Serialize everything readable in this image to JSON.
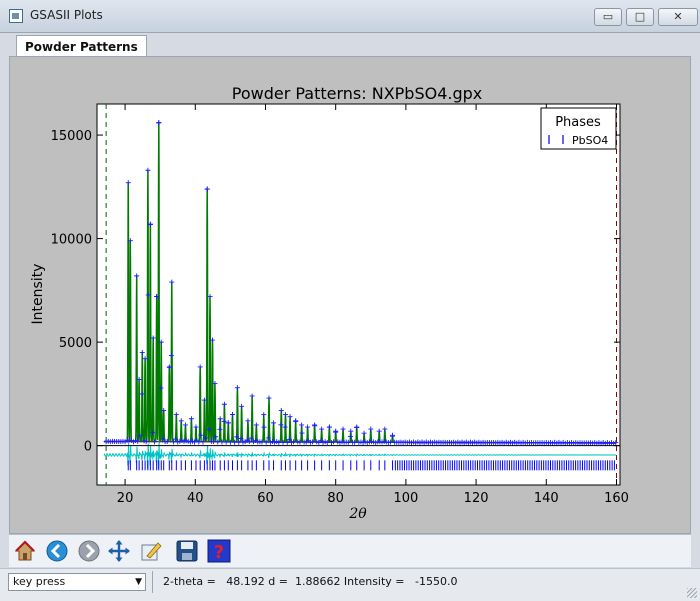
{
  "window": {
    "title": "GSASII Plots",
    "buttons": {
      "minimize": "▭",
      "maximize": "□",
      "close": "✕"
    }
  },
  "tabs": [
    {
      "label": "Powder Patterns",
      "active": true
    }
  ],
  "chart_data": {
    "type": "line",
    "title": "Powder Patterns: NXPbSO4.gpx",
    "xlabel": "2θ",
    "ylabel": "Intensity",
    "xlim": [
      12,
      161
    ],
    "ylim": [
      -1900,
      16500
    ],
    "xticks": [
      20,
      40,
      60,
      80,
      100,
      120,
      140,
      160
    ],
    "yticks": [
      0,
      5000,
      10000,
      15000
    ],
    "legend": {
      "title": "Phases",
      "placement": "top-right",
      "entries": [
        {
          "name": "PbSO4",
          "marker": "ticks"
        }
      ]
    },
    "limit_lines": [
      14.6,
      160
    ],
    "background": 200,
    "reflection_baseline": -950,
    "difference_offset": -450,
    "peaks": [
      {
        "x": 20.9,
        "y": 12700
      },
      {
        "x": 21.5,
        "y": 9900
      },
      {
        "x": 23.3,
        "y": 8200
      },
      {
        "x": 24.0,
        "y": 3200
      },
      {
        "x": 24.9,
        "y": 4500
      },
      {
        "x": 25.7,
        "y": 4200
      },
      {
        "x": 26.5,
        "y": 13300
      },
      {
        "x": 27.2,
        "y": 10700
      },
      {
        "x": 28.0,
        "y": 5200
      },
      {
        "x": 29.0,
        "y": 7200
      },
      {
        "x": 29.6,
        "y": 15600
      },
      {
        "x": 30.3,
        "y": 5000
      },
      {
        "x": 31.0,
        "y": 1700
      },
      {
        "x": 32.6,
        "y": 3800
      },
      {
        "x": 33.3,
        "y": 7900
      },
      {
        "x": 34.6,
        "y": 1500
      },
      {
        "x": 36.0,
        "y": 1200
      },
      {
        "x": 37.2,
        "y": 1000
      },
      {
        "x": 38.9,
        "y": 1300
      },
      {
        "x": 40.2,
        "y": 900
      },
      {
        "x": 41.4,
        "y": 3800
      },
      {
        "x": 42.6,
        "y": 2200
      },
      {
        "x": 43.4,
        "y": 12400
      },
      {
        "x": 44.2,
        "y": 7200
      },
      {
        "x": 44.9,
        "y": 5100
      },
      {
        "x": 45.6,
        "y": 3000
      },
      {
        "x": 47.1,
        "y": 1300
      },
      {
        "x": 48.3,
        "y": 2000
      },
      {
        "x": 49.4,
        "y": 1100
      },
      {
        "x": 50.6,
        "y": 1500
      },
      {
        "x": 52.0,
        "y": 2800
      },
      {
        "x": 53.2,
        "y": 1900
      },
      {
        "x": 55.0,
        "y": 1200
      },
      {
        "x": 56.2,
        "y": 2400
      },
      {
        "x": 57.4,
        "y": 1000
      },
      {
        "x": 59.5,
        "y": 1500
      },
      {
        "x": 61.0,
        "y": 2300
      },
      {
        "x": 62.3,
        "y": 1100
      },
      {
        "x": 64.5,
        "y": 1700
      },
      {
        "x": 65.7,
        "y": 1500
      },
      {
        "x": 67.0,
        "y": 1400
      },
      {
        "x": 68.6,
        "y": 1200
      },
      {
        "x": 70.3,
        "y": 1000
      },
      {
        "x": 72.0,
        "y": 900
      },
      {
        "x": 74.0,
        "y": 1000
      },
      {
        "x": 76.0,
        "y": 800
      },
      {
        "x": 78.2,
        "y": 900
      },
      {
        "x": 80.0,
        "y": 700
      },
      {
        "x": 82.1,
        "y": 800
      },
      {
        "x": 84.3,
        "y": 700
      },
      {
        "x": 86.0,
        "y": 900
      },
      {
        "x": 88.1,
        "y": 600
      },
      {
        "x": 90.0,
        "y": 800
      },
      {
        "x": 92.4,
        "y": 700
      },
      {
        "x": 94.0,
        "y": 800
      },
      {
        "x": 96.2,
        "y": 500
      }
    ],
    "reflections_x": [
      20.9,
      21.5,
      23.3,
      24.0,
      24.9,
      25.7,
      26.5,
      27.2,
      28.0,
      29.0,
      29.6,
      30.3,
      31.0,
      32.6,
      33.3,
      34.6,
      36.0,
      37.2,
      38.9,
      40.2,
      41.4,
      42.6,
      43.4,
      44.2,
      44.9,
      45.6,
      47.1,
      48.3,
      49.4,
      50.6,
      52.0,
      53.2,
      55.0,
      56.2,
      57.4,
      59.5,
      61.0,
      62.3,
      64.5,
      65.7,
      67.0,
      68.6,
      70.3,
      72.0,
      74.0,
      76.0,
      78.2,
      80.0,
      82.1,
      84.3,
      86.0,
      88.1,
      90.0,
      92.4,
      94.0,
      96.2
    ]
  },
  "toolbar": {
    "items": [
      {
        "name": "home-icon"
      },
      {
        "name": "back-icon"
      },
      {
        "name": "forward-icon"
      },
      {
        "name": "pan-icon"
      },
      {
        "name": "configure-icon"
      },
      {
        "name": "save-icon"
      },
      {
        "name": "help-icon"
      }
    ]
  },
  "status": {
    "mode_value": "key press",
    "readout": "2-theta =   48.192 d =  1.88662 Intensity =   -1550.0"
  },
  "colors": {
    "observed": "#1c1cff",
    "calculated": "#007a00",
    "background": "#cc0000",
    "difference": "#00c4c4",
    "reflections": "#0000ff",
    "limit": "#006400"
  }
}
